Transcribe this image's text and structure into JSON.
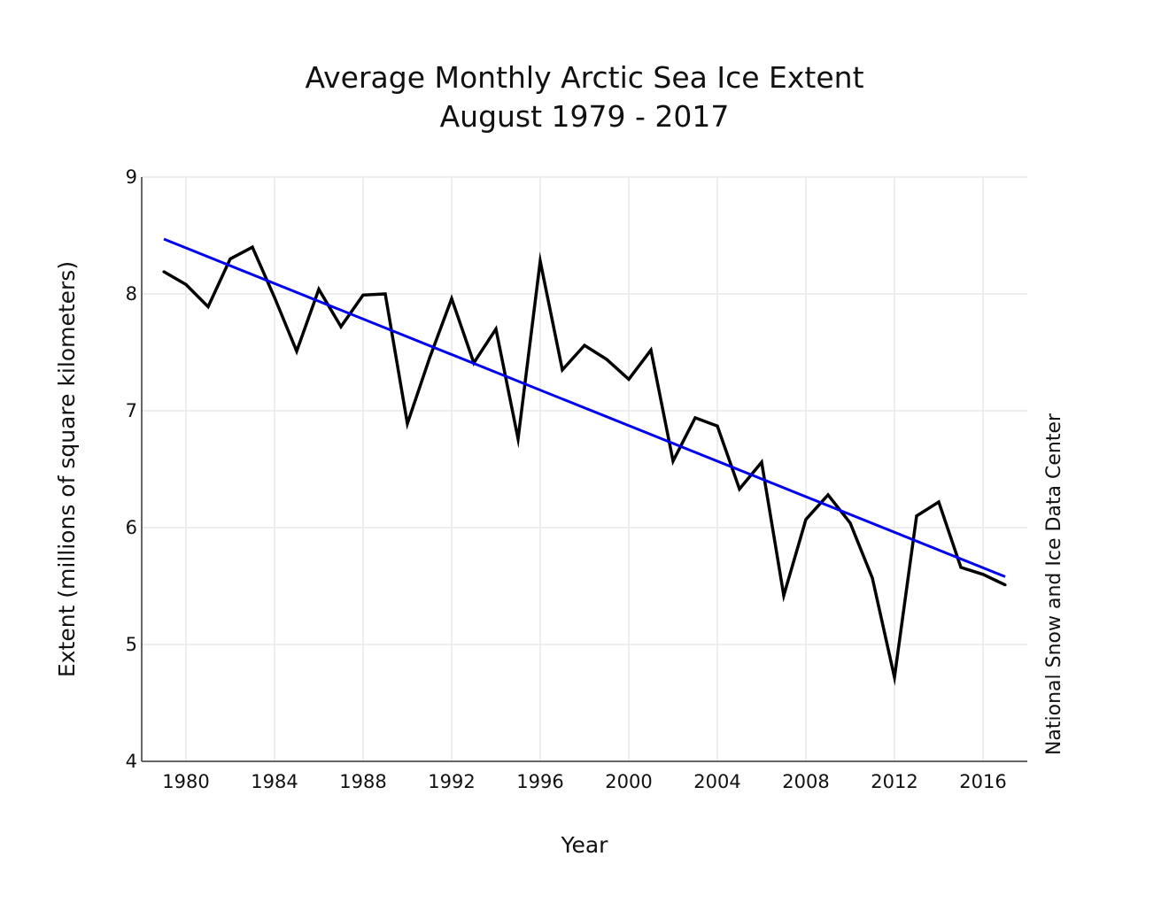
{
  "chart_data": {
    "type": "line",
    "title": "Average Monthly Arctic Sea Ice Extent",
    "subtitle": "August 1979 - 2017",
    "xlabel": "Year",
    "ylabel": "Extent (millions of square kilometers)",
    "source": "National Snow and Ice Data Center",
    "xlim": [
      1978,
      2018
    ],
    "ylim": [
      4,
      9
    ],
    "x_ticks": [
      1980,
      1984,
      1988,
      1992,
      1996,
      2000,
      2004,
      2008,
      2012,
      2016
    ],
    "y_ticks": [
      4,
      5,
      6,
      7,
      8,
      9
    ],
    "grid": true,
    "series": [
      {
        "name": "Extent",
        "color": "#000000",
        "x": [
          1979,
          1980,
          1981,
          1982,
          1983,
          1984,
          1985,
          1986,
          1987,
          1988,
          1989,
          1990,
          1991,
          1992,
          1993,
          1994,
          1995,
          1996,
          1997,
          1998,
          1999,
          2000,
          2001,
          2002,
          2003,
          2004,
          2005,
          2006,
          2007,
          2008,
          2009,
          2010,
          2011,
          2012,
          2013,
          2014,
          2015,
          2016,
          2017
        ],
        "values": [
          8.19,
          8.08,
          7.89,
          8.3,
          8.4,
          7.97,
          7.51,
          8.04,
          7.72,
          7.99,
          8.0,
          6.89,
          7.45,
          7.96,
          7.41,
          7.7,
          6.76,
          8.28,
          7.35,
          7.56,
          7.44,
          7.27,
          7.52,
          6.57,
          6.94,
          6.87,
          6.33,
          6.56,
          5.42,
          6.07,
          6.28,
          6.04,
          5.57,
          4.72,
          6.1,
          6.22,
          5.66,
          5.6,
          5.51
        ]
      },
      {
        "name": "Linear trend",
        "color": "#0000ee",
        "x": [
          1979,
          2017
        ],
        "values": [
          8.47,
          5.58
        ]
      }
    ]
  }
}
